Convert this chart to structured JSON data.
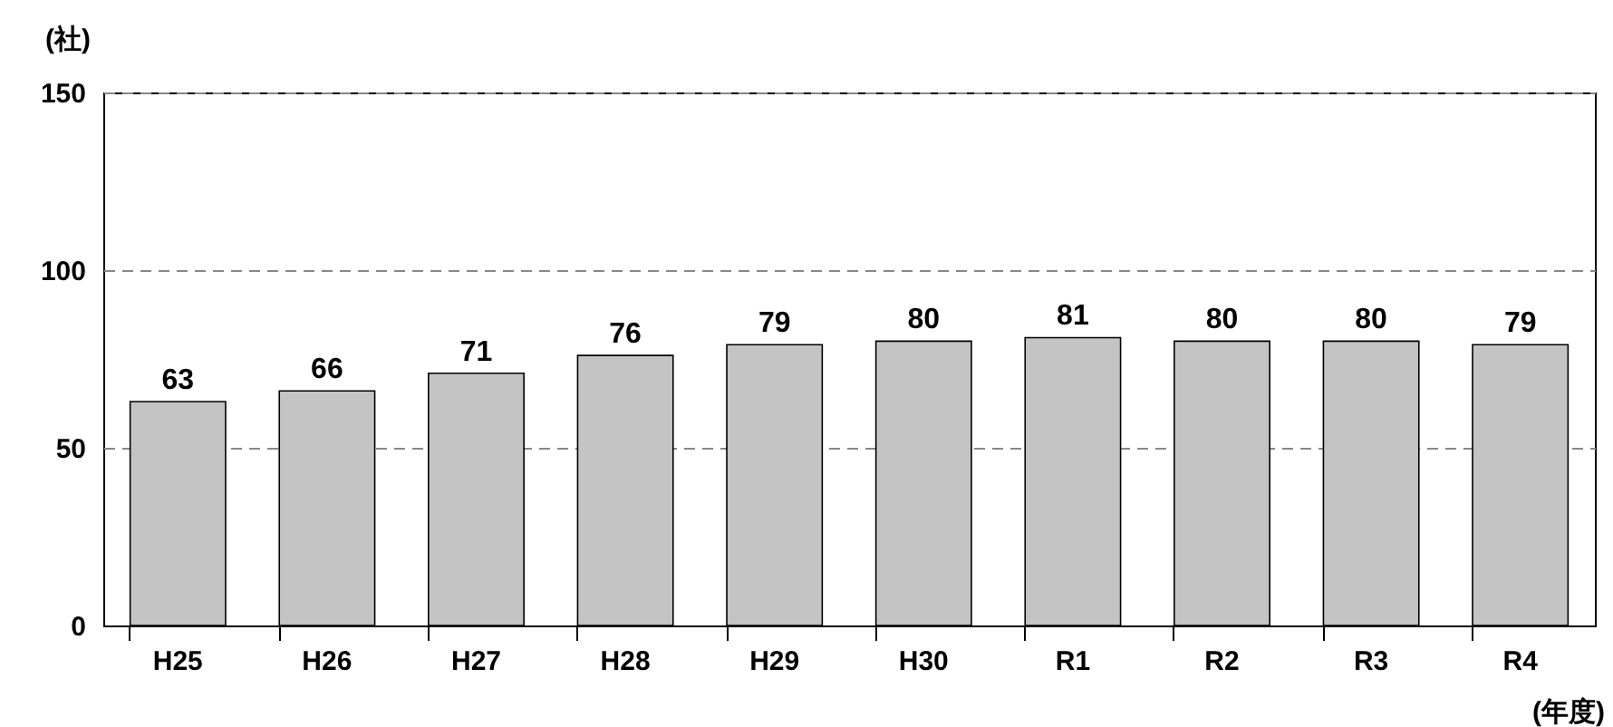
{
  "chart_data": {
    "type": "bar",
    "categories": [
      "H25",
      "H26",
      "H27",
      "H28",
      "H29",
      "H30",
      "R1",
      "R2",
      "R3",
      "R4"
    ],
    "values": [
      63,
      66,
      71,
      76,
      79,
      80,
      81,
      80,
      80,
      79
    ],
    "color": "#c4c4c4",
    "ylabel": "(社)",
    "xlabel": "(年度)",
    "ylim": [
      0,
      150
    ],
    "yticks": [
      0,
      50,
      100,
      150
    ],
    "grid": "y",
    "line_style": "dashed",
    "data_labels": true
  }
}
